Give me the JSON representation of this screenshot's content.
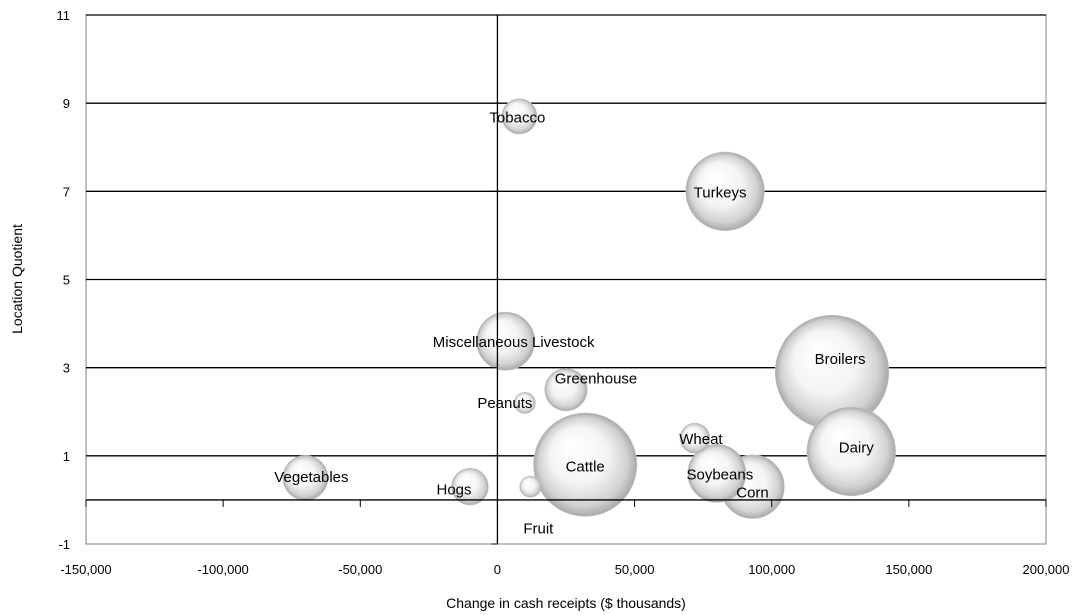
{
  "chart_data": {
    "type": "scatter",
    "title": "",
    "xlabel": "Change in cash receipts ($ thousands)",
    "ylabel": "Location Quotient",
    "xlim": [
      -150000,
      200000
    ],
    "ylim": [
      -1,
      11
    ],
    "x_ticks": [
      "-150,000",
      "-100,000",
      "-50,000",
      "0",
      "50,000",
      "100,000",
      "150,000",
      "200,000"
    ],
    "y_ticks": [
      "-1",
      "1",
      "3",
      "5",
      "7",
      "9",
      "11"
    ],
    "y_gridlines": [
      1,
      3,
      5,
      7,
      9,
      11
    ],
    "series": [
      {
        "points": [
          {
            "label": "Tobacco",
            "x": 8000,
            "y": 8.7,
            "size": 11
          },
          {
            "label": "Turkeys",
            "x": 83000,
            "y": 7.0,
            "size": 55
          },
          {
            "label": "Miscellaneous Livestock",
            "x": 3000,
            "y": 3.6,
            "size": 30
          },
          {
            "label": "Broilers",
            "x": 122000,
            "y": 2.9,
            "size": 115
          },
          {
            "label": "Greenhouse",
            "x": 25000,
            "y": 2.5,
            "size": 16
          },
          {
            "label": "Peanuts",
            "x": 10000,
            "y": 2.2,
            "size": 4
          },
          {
            "label": "Wheat",
            "x": 72000,
            "y": 1.4,
            "size": 8
          },
          {
            "label": "Dairy",
            "x": 129000,
            "y": 1.1,
            "size": 70
          },
          {
            "label": "Soybeans",
            "x": 80000,
            "y": 0.6,
            "size": 30
          },
          {
            "label": "Cattle",
            "x": 32000,
            "y": 0.8,
            "size": 95
          },
          {
            "label": "Vegetables",
            "x": -70000,
            "y": 0.5,
            "size": 18
          },
          {
            "label": "Hogs",
            "x": -10000,
            "y": 0.3,
            "size": 12
          },
          {
            "label": "Corn",
            "x": 93000,
            "y": 0.3,
            "size": 36
          },
          {
            "label": "Fruit",
            "x": 12000,
            "y": 0.3,
            "size": 4
          }
        ]
      }
    ]
  }
}
